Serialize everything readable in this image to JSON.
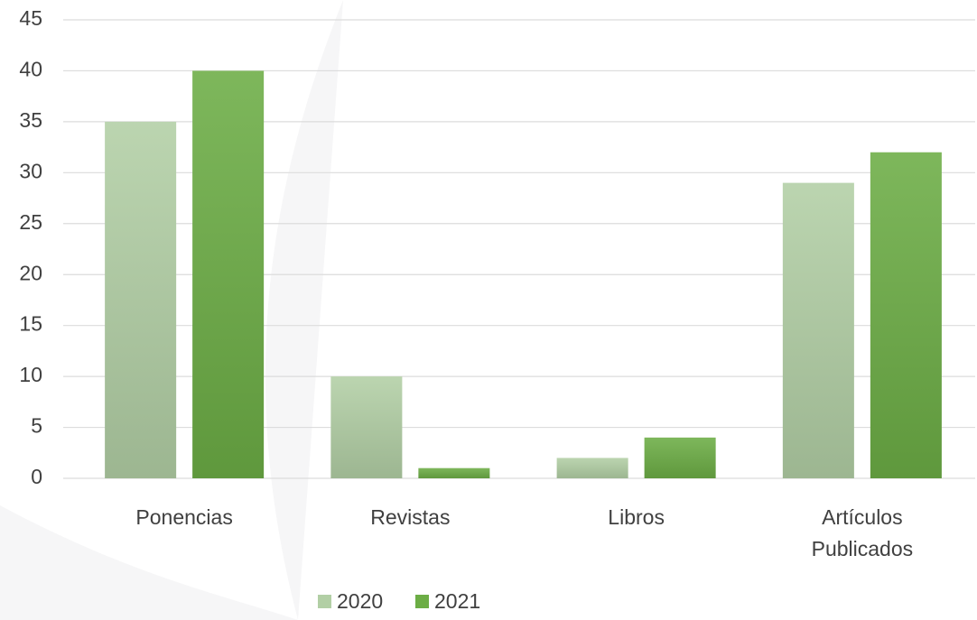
{
  "chart_data": {
    "type": "bar",
    "categories": [
      "Ponencias",
      "Revistas",
      "Libros",
      "Artículos Publicados"
    ],
    "series": [
      {
        "name": "2020",
        "color": "#b2cfa5",
        "values": [
          35,
          10,
          2,
          29
        ]
      },
      {
        "name": "2021",
        "color": "#6cad45",
        "values": [
          40,
          1,
          4,
          32
        ]
      }
    ],
    "ylim": [
      0,
      45
    ],
    "yticks": [
      0,
      5,
      10,
      15,
      20,
      25,
      30,
      35,
      40,
      45
    ],
    "grid": true,
    "legend": "bottom"
  }
}
